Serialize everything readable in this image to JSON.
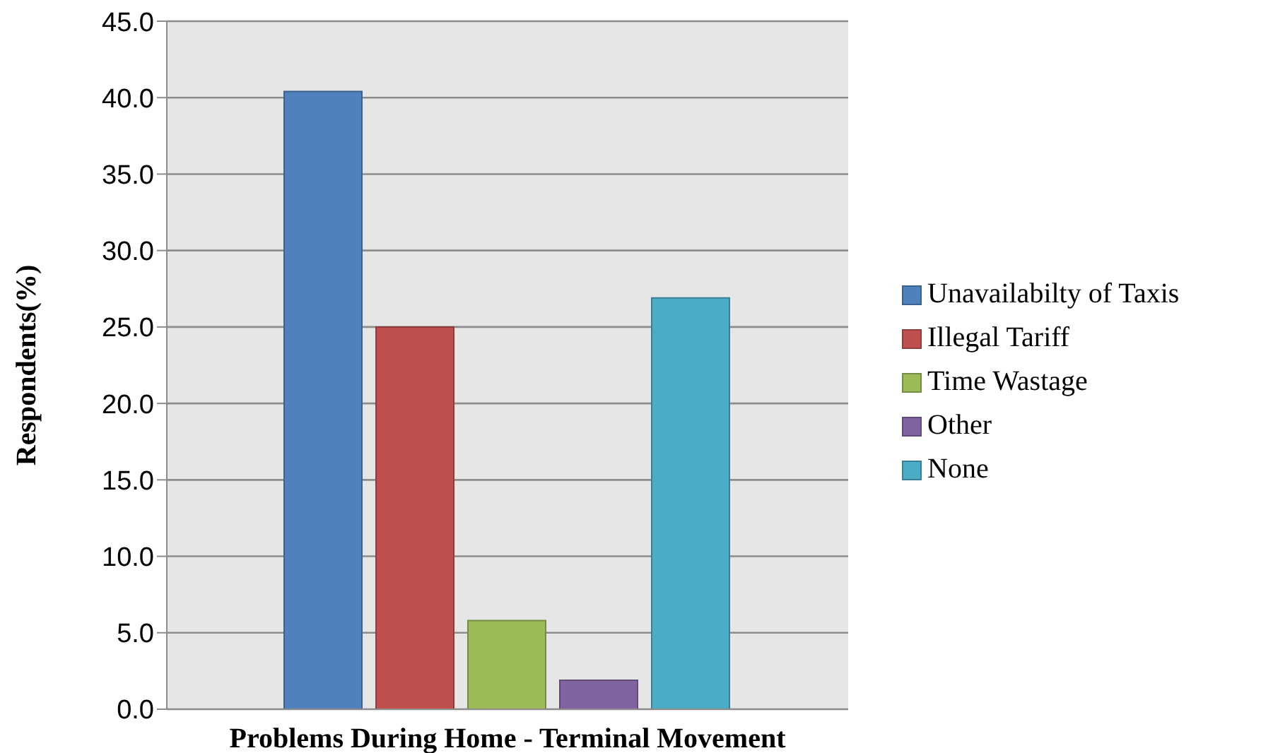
{
  "chart_data": {
    "type": "bar",
    "xlabel": "Problems During Home - Terminal Movement",
    "ylabel": "Respondents(%)",
    "categories": [
      null
    ],
    "series": [
      {
        "name": "Unavailabilty of Taxis",
        "color": "#4f81bd",
        "values": [
          40.4
        ]
      },
      {
        "name": "Illegal Tariff",
        "color": "#c0504d",
        "values": [
          25.0
        ]
      },
      {
        "name": "Time Wastage",
        "color": "#9bbb59",
        "values": [
          5.8
        ]
      },
      {
        "name": "Other",
        "color": "#8064a2",
        "values": [
          1.9
        ]
      },
      {
        "name": "None",
        "color": "#4bacc6",
        "values": [
          26.9
        ]
      }
    ],
    "ylim": [
      0,
      45
    ],
    "yticks": [
      {
        "value": 0,
        "label": "0.0"
      },
      {
        "value": 5,
        "label": "5.0"
      },
      {
        "value": 10,
        "label": "10.0"
      },
      {
        "value": 15,
        "label": "15.0"
      },
      {
        "value": 20,
        "label": "20.0"
      },
      {
        "value": 25,
        "label": "25.0"
      },
      {
        "value": 30,
        "label": "30.0"
      },
      {
        "value": 35,
        "label": "35.0"
      },
      {
        "value": 40,
        "label": "40.0"
      },
      {
        "value": 45,
        "label": "45.0"
      }
    ],
    "grid": "y",
    "legend": "right"
  }
}
